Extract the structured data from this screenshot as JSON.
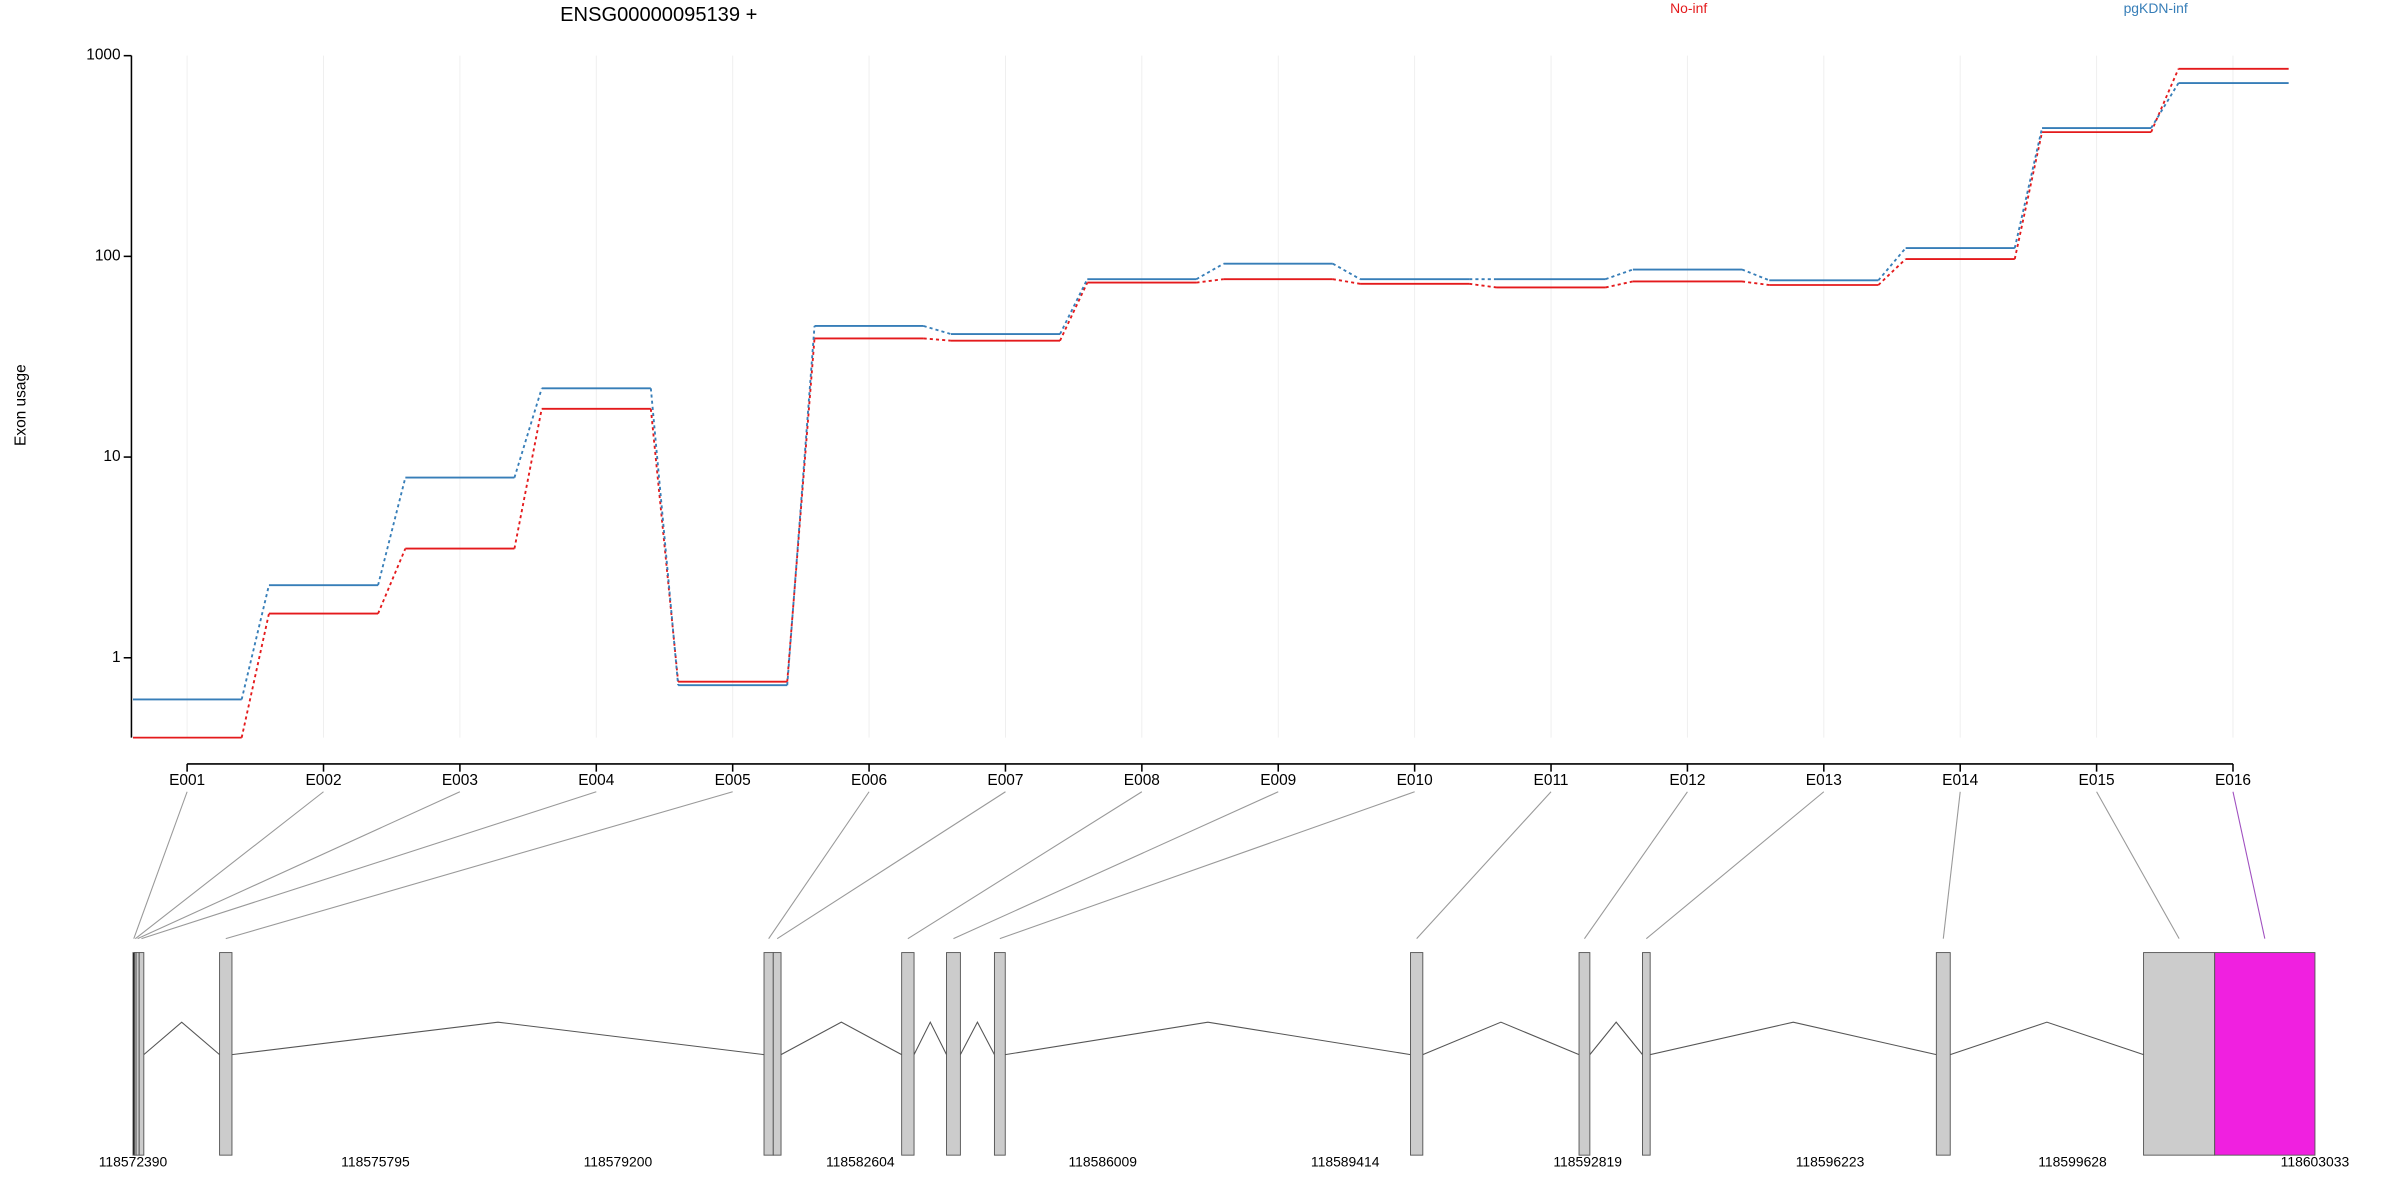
{
  "chart_data": {
    "type": "line",
    "title": "ENSG00000095139 +",
    "y_label": "Exon usage",
    "categories": [
      "E001",
      "E002",
      "E003",
      "E004",
      "E005",
      "E006",
      "E007",
      "E008",
      "E009",
      "E010",
      "E011",
      "E012",
      "E013",
      "E014",
      "E015",
      "E016"
    ],
    "series": [
      {
        "name": "No-inf",
        "color": "#e41a1c",
        "values": [
          0.4,
          1.66,
          3.5,
          17.4,
          0.76,
          39,
          38,
          74,
          77,
          73,
          70,
          75,
          72,
          97,
          416,
          860
        ]
      },
      {
        "name": "pgKDN-inf",
        "color": "#377eb8",
        "values": [
          0.62,
          2.3,
          7.9,
          22,
          0.73,
          45,
          41,
          77,
          92,
          77,
          77,
          86,
          76,
          110,
          436,
          730
        ]
      }
    ],
    "log_scale": true,
    "ylim": [
      0.4,
      1000
    ],
    "yticks": [
      1,
      10,
      100,
      1000
    ],
    "grid": true
  },
  "gene_model": {
    "xlim": [
      118572390,
      118603033
    ],
    "xticks": [
      118572390,
      118575795,
      118579200,
      118582604,
      118586009,
      118589414,
      118592819,
      118596223,
      118599628,
      118603033
    ],
    "exon_starts": [
      118572390,
      118572412,
      118572433,
      118572477,
      118573606,
      118581252,
      118581382,
      118583185,
      118583815,
      118584488,
      118590331,
      118592698,
      118593589,
      118597716,
      118600626,
      118601625
    ],
    "exon_ends": [
      118572412,
      118572433,
      118572477,
      118572542,
      118573780,
      118581382,
      118581491,
      118583359,
      118584010,
      118584640,
      118590504,
      118592850,
      118593697,
      118597911,
      118601625,
      118603033
    ],
    "exon_colors": [
      "#000000",
      "#cccccc",
      "#cccccc",
      "#cccccc",
      "#cccccc",
      "#cccccc",
      "#cccccc",
      "#cccccc",
      "#cccccc",
      "#cccccc",
      "#cccccc",
      "#cccccc",
      "#cccccc",
      "#cccccc",
      "#cccccc",
      "#f020e0"
    ]
  }
}
